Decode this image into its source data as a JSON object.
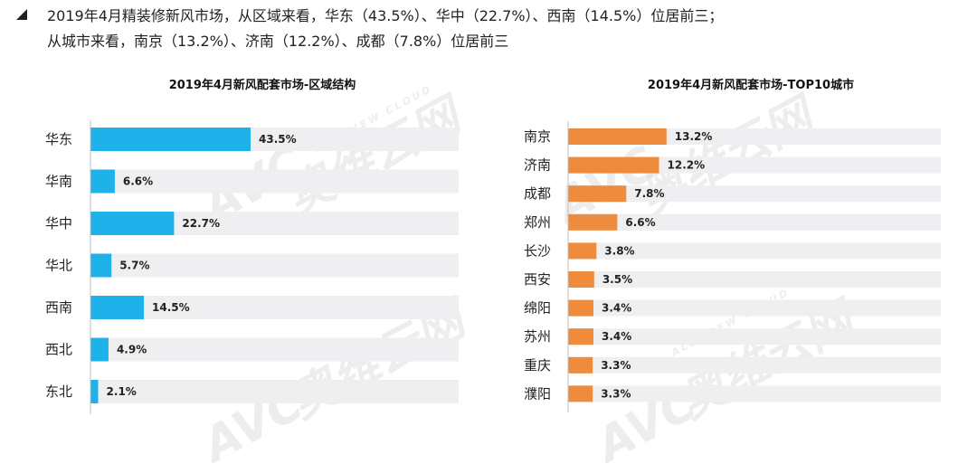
{
  "header": {
    "line1": "2019年4月精装修新风市场，从区域来看，华东（43.5%）、华中（22.7%）、西南（14.5%）位居前三；",
    "line2": "从城市来看，南京（13.2%）、济南（12.2%）、成都（7.8%）位居前三"
  },
  "watermark": {
    "logo": "AVC",
    "brand": "奥维云网",
    "tagline": "ALL VIEW CLOUD"
  },
  "chart_data": [
    {
      "type": "bar",
      "orientation": "horizontal",
      "title": "2019年4月新风配套市场-区域结构",
      "categories": [
        "华东",
        "华南",
        "华中",
        "华北",
        "西南",
        "西北",
        "东北"
      ],
      "values": [
        43.5,
        6.6,
        22.7,
        5.7,
        14.5,
        4.9,
        2.1
      ],
      "labels": [
        "43.5%",
        "6.6%",
        "22.7%",
        "5.7%",
        "14.5%",
        "4.9%",
        "2.1%"
      ],
      "color": "#1fb1ea",
      "xlim": [
        0,
        100
      ],
      "grid": false,
      "legend": false
    },
    {
      "type": "bar",
      "orientation": "horizontal",
      "title": "2019年4月新风配套市场-TOP10城市",
      "categories": [
        "南京",
        "济南",
        "成都",
        "郑州",
        "长沙",
        "西安",
        "绵阳",
        "苏州",
        "重庆",
        "濮阳"
      ],
      "values": [
        13.2,
        12.2,
        7.8,
        6.6,
        3.8,
        3.5,
        3.4,
        3.4,
        3.3,
        3.3
      ],
      "labels": [
        "13.2%",
        "12.2%",
        "7.8%",
        "6.6%",
        "3.8%",
        "3.5%",
        "3.4%",
        "3.4%",
        "3.3%",
        "3.3%"
      ],
      "color": "#ef8b3c",
      "xlim": [
        0,
        50
      ],
      "grid": false,
      "legend": false
    }
  ]
}
